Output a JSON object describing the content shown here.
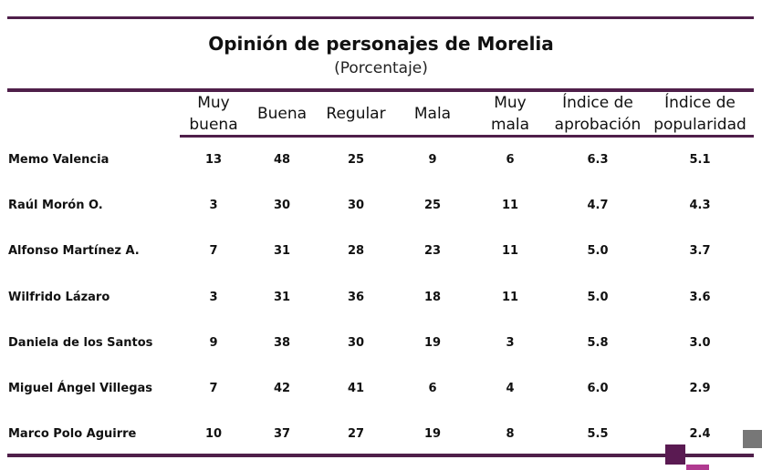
{
  "header": {
    "title": "Opinión de personajes de Morelia",
    "subtitle": "(Porcentaje)"
  },
  "table": {
    "columns": [
      "Muy buena",
      "Buena",
      "Regular",
      "Mala",
      "Muy mala",
      "Índice de aprobación",
      "Índice de popularidad"
    ],
    "rows": [
      [
        "Memo Valencia",
        "13",
        "48",
        "25",
        "9",
        "6",
        "6.3",
        "5.1"
      ],
      [
        "Raúl Morón O.",
        "3",
        "30",
        "30",
        "25",
        "11",
        "4.7",
        "4.3"
      ],
      [
        "Alfonso Martínez A.",
        "7",
        "31",
        "28",
        "23",
        "11",
        "5.0",
        "3.7"
      ],
      [
        "Wilfrido Lázaro",
        "3",
        "31",
        "36",
        "18",
        "11",
        "5.0",
        "3.6"
      ],
      [
        "Daniela de los Santos",
        "9",
        "38",
        "30",
        "19",
        "3",
        "5.8",
        "3.0"
      ],
      [
        "Miguel Ángel Villegas",
        "7",
        "42",
        "41",
        "6",
        "4",
        "6.0",
        "2.9"
      ],
      [
        "Marco Polo Aguirre",
        "10",
        "37",
        "27",
        "19",
        "8",
        "5.5",
        "2.4"
      ]
    ]
  }
}
